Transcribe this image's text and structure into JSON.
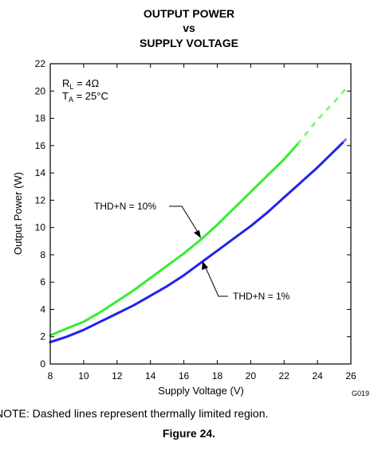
{
  "chart_data": {
    "type": "line",
    "title_lines": [
      "OUTPUT POWER",
      "vs",
      "SUPPLY VOLTAGE"
    ],
    "xlabel": "Supply Voltage (V)",
    "ylabel": "Output Power (W)",
    "xlim": [
      8,
      26
    ],
    "ylim": [
      0,
      22
    ],
    "xticks": [
      8,
      10,
      12,
      14,
      16,
      18,
      20,
      22,
      24,
      26
    ],
    "yticks": [
      0,
      2,
      4,
      6,
      8,
      10,
      12,
      14,
      16,
      18,
      20,
      22
    ],
    "grid": false,
    "conditions": {
      "rl_main": "R",
      "rl_sub": "L",
      "rl_value": " = 4Ω",
      "ta_main": "T",
      "ta_sub": "A",
      "ta_value": " = 25°C"
    },
    "series": [
      {
        "name": "THD+N = 10%",
        "color": "#33ee33",
        "solid": [
          [
            8,
            2.1
          ],
          [
            9,
            2.6
          ],
          [
            10,
            3.1
          ],
          [
            11,
            3.8
          ],
          [
            12,
            4.6
          ],
          [
            13,
            5.4
          ],
          [
            14,
            6.3
          ],
          [
            15,
            7.2
          ],
          [
            16,
            8.1
          ],
          [
            17,
            9.1
          ],
          [
            18,
            10.2
          ],
          [
            19,
            11.4
          ],
          [
            20,
            12.6
          ],
          [
            21,
            13.8
          ],
          [
            22,
            15.0
          ],
          [
            22.8,
            16.1
          ]
        ],
        "dashed": [
          [
            22.8,
            16.1
          ],
          [
            24,
            17.9
          ],
          [
            25,
            19.2
          ],
          [
            25.8,
            20.3
          ]
        ]
      },
      {
        "name": "THD+N = 1%",
        "color": "#2222ee",
        "solid": [
          [
            8,
            1.6
          ],
          [
            9,
            2.0
          ],
          [
            10,
            2.5
          ],
          [
            11,
            3.1
          ],
          [
            12,
            3.7
          ],
          [
            13,
            4.3
          ],
          [
            14,
            5.0
          ],
          [
            15,
            5.7
          ],
          [
            16,
            6.5
          ],
          [
            17,
            7.4
          ],
          [
            18,
            8.3
          ],
          [
            19,
            9.2
          ],
          [
            20,
            10.1
          ],
          [
            21,
            11.1
          ],
          [
            22,
            12.2
          ],
          [
            23,
            13.3
          ],
          [
            24,
            14.4
          ],
          [
            25,
            15.6
          ],
          [
            25.5,
            16.2
          ]
        ],
        "dashed": [
          [
            25.5,
            16.2
          ],
          [
            25.8,
            16.6
          ]
        ]
      }
    ],
    "annotations": [
      "THD+N = 10%",
      "THD+N = 1%"
    ],
    "figure_code": "G019"
  },
  "note": "NOTE:   Dashed lines represent thermally limited region.",
  "figure_caption": "Figure 24."
}
